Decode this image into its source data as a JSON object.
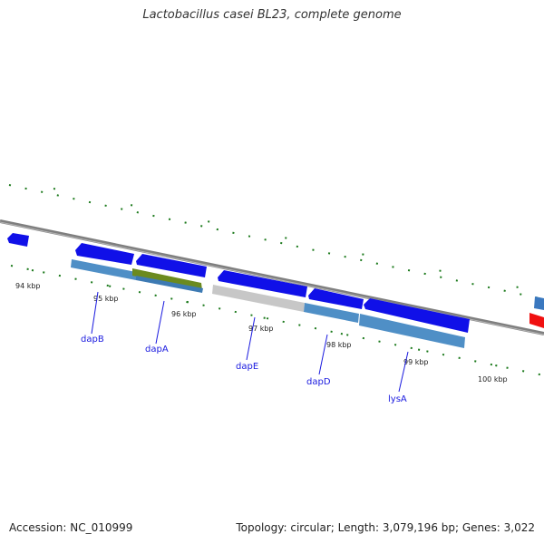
{
  "header": {
    "title": "Lactobacillus casei BL23, complete genome"
  },
  "footer": {
    "accession": "Accession: NC_010999",
    "summary": "Topology: circular; Length: 3,079,196 bp; Genes: 3,022"
  },
  "ruler": {
    "labels": [
      "94 kbp",
      "95 kbp",
      "96 kbp",
      "97 kbp",
      "98 kbp",
      "99 kbp",
      "100 kbp"
    ]
  },
  "genes": [
    {
      "name": "dapB"
    },
    {
      "name": "dapA"
    },
    {
      "name": "dapE"
    },
    {
      "name": "dapD"
    },
    {
      "name": "lysA"
    }
  ],
  "colors": {
    "forward_cds": "#1010e8",
    "reverse_cds": "#f01010",
    "annotation_bar": "#4f8fc6",
    "highlight_bar": "#6b8a1f",
    "unannotated_bar": "#c7c7c7",
    "backbone": "#7f7f7f",
    "tick": "#1c7a1c"
  }
}
